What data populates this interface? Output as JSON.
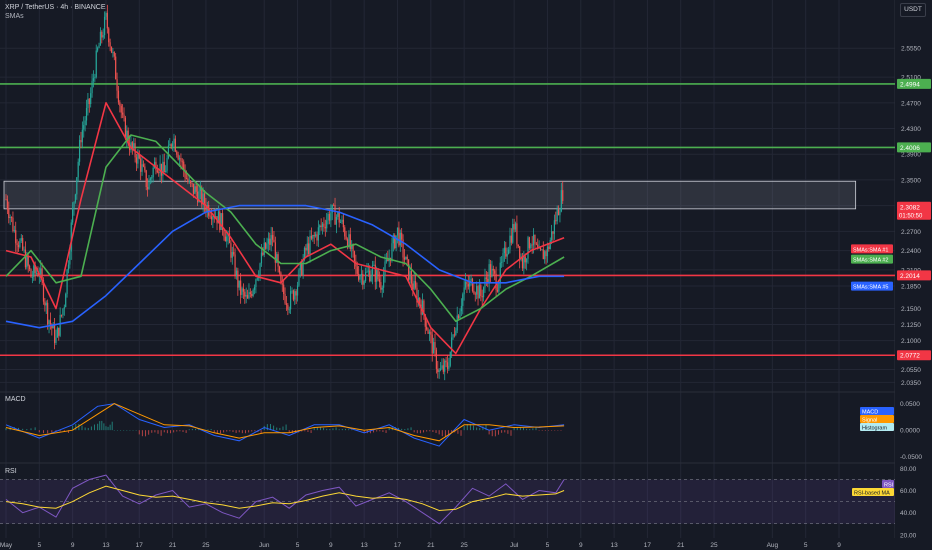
{
  "header": {
    "symbol_line": "XRP / TetherUS · 4h · BINANCE",
    "indicator_line": "SMAs",
    "currency": "USDT"
  },
  "colors": {
    "bg": "#161a25",
    "grid": "#232735",
    "up": "#26a69a",
    "down": "#ef5350",
    "sma1": "#f23645",
    "sma2": "#4caf50",
    "sma5": "#2962ff",
    "green_level": "#4caf50",
    "red_level": "#f23645",
    "macd": "#2962ff",
    "signal": "#ff9800",
    "rsi": "#7e57c2",
    "rsi_ma": "#fdd835"
  },
  "chart_data": {
    "type": "candlestick",
    "timeframe": "4h",
    "x_axis": {
      "ticks": [
        {
          "label": "May",
          "day": 1
        },
        {
          "label": "5",
          "day": 5
        },
        {
          "label": "9",
          "day": 9
        },
        {
          "label": "13",
          "day": 13
        },
        {
          "label": "17",
          "day": 17
        },
        {
          "label": "21",
          "day": 21
        },
        {
          "label": "25",
          "day": 25
        },
        {
          "label": "Jun",
          "day": 32
        },
        {
          "label": "5",
          "day": 36
        },
        {
          "label": "9",
          "day": 40
        },
        {
          "label": "13",
          "day": 44
        },
        {
          "label": "17",
          "day": 48
        },
        {
          "label": "21",
          "day": 52
        },
        {
          "label": "25",
          "day": 56
        },
        {
          "label": "Jul",
          "day": 62
        },
        {
          "label": "5",
          "day": 66
        },
        {
          "label": "9",
          "day": 70
        },
        {
          "label": "13",
          "day": 74
        },
        {
          "label": "17",
          "day": 78
        },
        {
          "label": "21",
          "day": 82
        },
        {
          "label": "25",
          "day": 86
        },
        {
          "label": "Aug",
          "day": 93
        },
        {
          "label": "5",
          "day": 97
        },
        {
          "label": "9",
          "day": 101
        }
      ]
    },
    "price_axis": {
      "ylim": [
        2.02,
        2.63
      ],
      "ticks": [
        "2.5550",
        "2.5100",
        "2.4700",
        "2.4300",
        "2.3900",
        "2.3500",
        "2.3100",
        "2.2700",
        "2.2400",
        "2.2100",
        "2.1850",
        "2.1500",
        "2.1250",
        "2.1000",
        "2.0550",
        "2.0350"
      ]
    },
    "price_series": [
      {
        "day": 1,
        "price": 2.32
      },
      {
        "day": 2,
        "price": 2.27
      },
      {
        "day": 3,
        "price": 2.24
      },
      {
        "day": 4,
        "price": 2.2
      },
      {
        "day": 5,
        "price": 2.21
      },
      {
        "day": 6,
        "price": 2.14
      },
      {
        "day": 7,
        "price": 2.1
      },
      {
        "day": 8,
        "price": 2.16
      },
      {
        "day": 9,
        "price": 2.3
      },
      {
        "day": 10,
        "price": 2.42
      },
      {
        "day": 11,
        "price": 2.47
      },
      {
        "day": 12,
        "price": 2.55
      },
      {
        "day": 13,
        "price": 2.6
      },
      {
        "day": 14,
        "price": 2.53
      },
      {
        "day": 15,
        "price": 2.44
      },
      {
        "day": 16,
        "price": 2.4
      },
      {
        "day": 17,
        "price": 2.38
      },
      {
        "day": 18,
        "price": 2.34
      },
      {
        "day": 19,
        "price": 2.38
      },
      {
        "day": 20,
        "price": 2.36
      },
      {
        "day": 21,
        "price": 2.42
      },
      {
        "day": 22,
        "price": 2.38
      },
      {
        "day": 23,
        "price": 2.34
      },
      {
        "day": 24,
        "price": 2.33
      },
      {
        "day": 25,
        "price": 2.31
      },
      {
        "day": 26,
        "price": 2.3
      },
      {
        "day": 27,
        "price": 2.28
      },
      {
        "day": 28,
        "price": 2.24
      },
      {
        "day": 29,
        "price": 2.18
      },
      {
        "day": 30,
        "price": 2.16
      },
      {
        "day": 31,
        "price": 2.2
      },
      {
        "day": 32,
        "price": 2.24
      },
      {
        "day": 33,
        "price": 2.26
      },
      {
        "day": 34,
        "price": 2.18
      },
      {
        "day": 35,
        "price": 2.16
      },
      {
        "day": 36,
        "price": 2.19
      },
      {
        "day": 37,
        "price": 2.24
      },
      {
        "day": 38,
        "price": 2.26
      },
      {
        "day": 39,
        "price": 2.28
      },
      {
        "day": 40,
        "price": 2.3
      },
      {
        "day": 41,
        "price": 2.29
      },
      {
        "day": 42,
        "price": 2.26
      },
      {
        "day": 43,
        "price": 2.21
      },
      {
        "day": 44,
        "price": 2.2
      },
      {
        "day": 45,
        "price": 2.21
      },
      {
        "day": 46,
        "price": 2.19
      },
      {
        "day": 47,
        "price": 2.23
      },
      {
        "day": 48,
        "price": 2.27
      },
      {
        "day": 49,
        "price": 2.22
      },
      {
        "day": 50,
        "price": 2.18
      },
      {
        "day": 51,
        "price": 2.15
      },
      {
        "day": 52,
        "price": 2.1
      },
      {
        "day": 53,
        "price": 2.05
      },
      {
        "day": 54,
        "price": 2.06
      },
      {
        "day": 55,
        "price": 2.13
      },
      {
        "day": 56,
        "price": 2.18
      },
      {
        "day": 57,
        "price": 2.19
      },
      {
        "day": 58,
        "price": 2.17
      },
      {
        "day": 59,
        "price": 2.21
      },
      {
        "day": 60,
        "price": 2.19
      },
      {
        "day": 61,
        "price": 2.24
      },
      {
        "day": 62,
        "price": 2.28
      },
      {
        "day": 63,
        "price": 2.22
      },
      {
        "day": 64,
        "price": 2.26
      },
      {
        "day": 65,
        "price": 2.23
      },
      {
        "day": 66,
        "price": 2.24
      },
      {
        "day": 67,
        "price": 2.29
      },
      {
        "day": 68,
        "price": 2.34
      }
    ],
    "sma_series": [
      {
        "name": "SMAs:SMA #1",
        "days": [
          1,
          4,
          7,
          10,
          13,
          16,
          19,
          22,
          25,
          28,
          31,
          34,
          37,
          40,
          43,
          46,
          49,
          52,
          55,
          58,
          61,
          64,
          68
        ],
        "values": [
          2.24,
          2.23,
          2.15,
          2.32,
          2.47,
          2.4,
          2.37,
          2.34,
          2.31,
          2.26,
          2.2,
          2.19,
          2.23,
          2.25,
          2.22,
          2.21,
          2.2,
          2.12,
          2.08,
          2.15,
          2.21,
          2.24,
          2.26
        ]
      },
      {
        "name": "SMAs:SMA #2",
        "days": [
          1,
          4,
          7,
          10,
          13,
          16,
          19,
          22,
          25,
          28,
          31,
          34,
          37,
          40,
          43,
          46,
          49,
          52,
          55,
          58,
          61,
          64,
          68
        ],
        "values": [
          2.2,
          2.24,
          2.19,
          2.2,
          2.37,
          2.42,
          2.41,
          2.37,
          2.33,
          2.3,
          2.25,
          2.22,
          2.22,
          2.24,
          2.25,
          2.23,
          2.22,
          2.18,
          2.13,
          2.15,
          2.18,
          2.2,
          2.23
        ]
      },
      {
        "name": "SMAs:SMA #5",
        "days": [
          1,
          5,
          9,
          13,
          17,
          21,
          25,
          29,
          33,
          37,
          41,
          45,
          49,
          53,
          57,
          61,
          65,
          68
        ],
        "values": [
          2.13,
          2.12,
          2.13,
          2.17,
          2.22,
          2.27,
          2.3,
          2.31,
          2.31,
          2.31,
          2.3,
          2.28,
          2.25,
          2.21,
          2.19,
          2.19,
          2.2,
          2.2
        ]
      }
    ],
    "zone": {
      "from_day": 1,
      "to_day": 103,
      "top": 2.348,
      "bottom": 2.305
    },
    "levels": [
      {
        "value": 2.4994,
        "label": "2.4994",
        "kind": "green"
      },
      {
        "value": 2.4006,
        "label": "2.4006",
        "kind": "green"
      },
      {
        "value": 2.2014,
        "label": "2.2014",
        "kind": "red"
      },
      {
        "value": 2.0772,
        "label": "2.0772",
        "kind": "red"
      }
    ],
    "current_price": {
      "value": 2.3082,
      "label": "2.3082",
      "countdown": "01:50:50"
    },
    "sma_labels": [
      {
        "name": "SMAs:SMA #1",
        "y": 2.242
      },
      {
        "name": "SMAs:SMA #2",
        "y": 2.226
      },
      {
        "name": "SMAs:SMA #5",
        "y": 2.184
      }
    ],
    "macd": {
      "title": "MACD",
      "ylim": [
        -0.06,
        0.07
      ],
      "ticks": [
        "0.0500",
        "0.0000",
        "-0.0500"
      ],
      "legend": [
        "MACD",
        "Signal",
        "Histogram"
      ],
      "macd_days": [
        1,
        5,
        9,
        12,
        14,
        17,
        20,
        23,
        26,
        29,
        32,
        35,
        38,
        41,
        44,
        47,
        50,
        53,
        56,
        59,
        62,
        65,
        68
      ],
      "macd_values": [
        0.01,
        -0.015,
        0.01,
        0.045,
        0.05,
        0.02,
        0.005,
        0.01,
        -0.01,
        -0.02,
        0.005,
        -0.01,
        0.01,
        0.01,
        -0.005,
        0.01,
        -0.015,
        -0.03,
        0.02,
        0.0,
        0.01,
        0.005,
        0.01
      ],
      "signal_values": [
        0.005,
        -0.01,
        0.0,
        0.03,
        0.05,
        0.03,
        0.01,
        0.008,
        -0.005,
        -0.015,
        -0.005,
        -0.005,
        0.005,
        0.008,
        0.0,
        0.005,
        -0.01,
        -0.02,
        0.01,
        0.01,
        0.005,
        0.006,
        0.008
      ]
    },
    "rsi": {
      "title": "RSI",
      "ylim": [
        18,
        84
      ],
      "ticks": [
        "80.00",
        "60.00",
        "40.00",
        "20.00"
      ],
      "legend": [
        "RSI",
        "RSI-based MA"
      ],
      "days": [
        1,
        3,
        5,
        7,
        9,
        11,
        13,
        15,
        17,
        19,
        21,
        23,
        25,
        27,
        29,
        31,
        33,
        35,
        37,
        39,
        41,
        43,
        45,
        47,
        49,
        51,
        53,
        55,
        57,
        59,
        61,
        63,
        65,
        67,
        68
      ],
      "rsi_values": [
        52,
        40,
        45,
        36,
        62,
        70,
        74,
        55,
        48,
        56,
        60,
        45,
        48,
        40,
        35,
        50,
        54,
        44,
        56,
        60,
        63,
        46,
        52,
        58,
        50,
        40,
        30,
        45,
        62,
        55,
        66,
        52,
        60,
        58,
        70
      ],
      "ma_values": [
        50,
        48,
        45,
        44,
        50,
        58,
        64,
        60,
        56,
        54,
        55,
        52,
        49,
        47,
        44,
        46,
        49,
        48,
        51,
        55,
        58,
        55,
        53,
        54,
        52,
        48,
        42,
        43,
        50,
        53,
        57,
        55,
        56,
        57,
        60
      ]
    }
  }
}
